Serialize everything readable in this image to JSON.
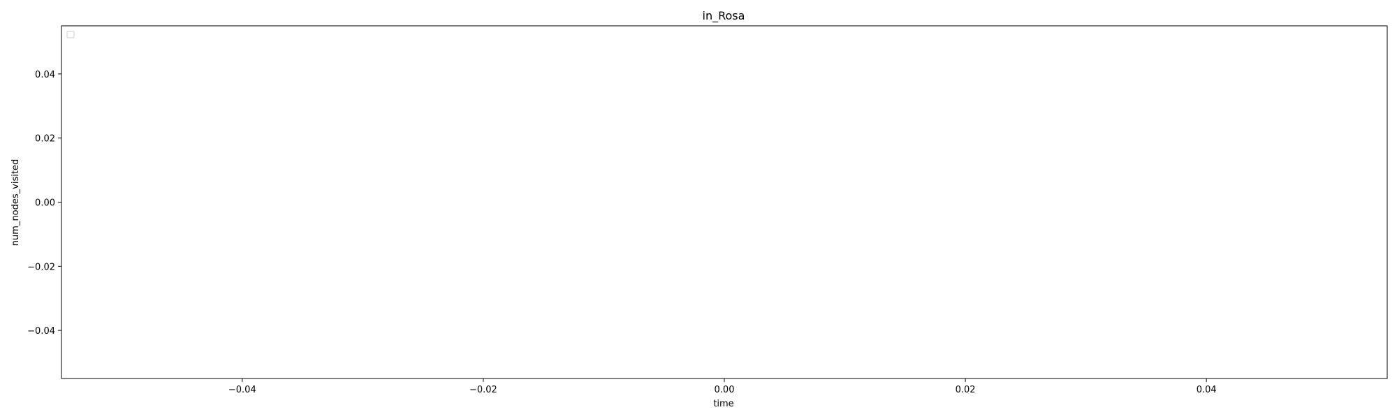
{
  "chart_data": {
    "type": "line",
    "title": "in_Rosa",
    "xlabel": "time",
    "ylabel": "num_nodes_visited",
    "xlim": [
      -0.055,
      0.055
    ],
    "ylim": [
      -0.055,
      0.055
    ],
    "x_ticks": [
      -0.04,
      -0.02,
      0.0,
      0.02,
      0.04
    ],
    "x_tick_labels": [
      "−0.04",
      "−0.02",
      "0.00",
      "0.02",
      "0.04"
    ],
    "y_ticks": [
      -0.04,
      -0.02,
      0.0,
      0.02,
      0.04
    ],
    "y_tick_labels": [
      "−0.04",
      "−0.02",
      "0.00",
      "0.02",
      "0.04"
    ],
    "grid": false,
    "legend": {
      "placement": "top-left",
      "entries": []
    },
    "series": []
  }
}
